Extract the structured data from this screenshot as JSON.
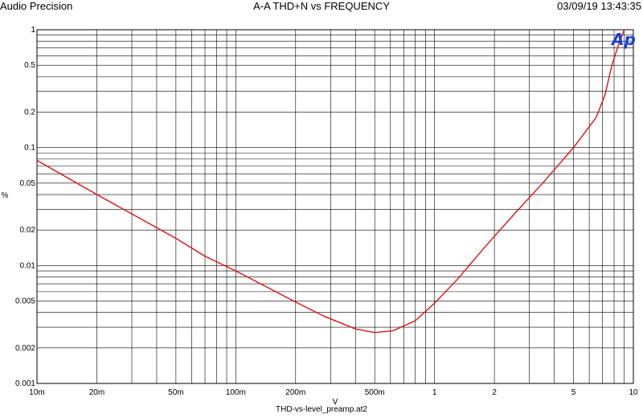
{
  "header": {
    "left": "Audio Precision",
    "title": "A-A THD+N vs FREQUENCY",
    "timestamp": "03/09/19 13:43:35"
  },
  "footer": {
    "filename": "THD-vs-level_preamp.at2"
  },
  "logo": {
    "text": "Ap",
    "color": "#1a3fd6"
  },
  "chart_data": {
    "type": "line",
    "title": "A-A THD+N vs FREQUENCY",
    "xlabel": "V",
    "ylabel": "%",
    "xscale": "log",
    "yscale": "log",
    "xlim": [
      0.01,
      10
    ],
    "ylim": [
      0.001,
      1
    ],
    "grid": true,
    "line_color": "#e01010",
    "x_tick_labels": [
      {
        "value": 0.01,
        "label": "10m"
      },
      {
        "value": 0.02,
        "label": "20m"
      },
      {
        "value": 0.05,
        "label": "50m"
      },
      {
        "value": 0.1,
        "label": "100m"
      },
      {
        "value": 0.2,
        "label": "200m"
      },
      {
        "value": 0.5,
        "label": "500m"
      },
      {
        "value": 1,
        "label": "1"
      },
      {
        "value": 2,
        "label": "2"
      },
      {
        "value": 5,
        "label": "5"
      },
      {
        "value": 10,
        "label": "10"
      }
    ],
    "y_tick_labels": [
      {
        "value": 1,
        "label": "1"
      },
      {
        "value": 0.5,
        "label": "0.5"
      },
      {
        "value": 0.2,
        "label": "0.2"
      },
      {
        "value": 0.1,
        "label": "0.1"
      },
      {
        "value": 0.05,
        "label": "0.05"
      },
      {
        "value": 0.02,
        "label": "0.02"
      },
      {
        "value": 0.01,
        "label": "0.01"
      },
      {
        "value": 0.005,
        "label": "0.005"
      },
      {
        "value": 0.002,
        "label": "0.002"
      },
      {
        "value": 0.001,
        "label": "0.001"
      }
    ],
    "series": [
      {
        "x": [
          0.01,
          0.02,
          0.05,
          0.07,
          0.1,
          0.2,
          0.28,
          0.4,
          0.5,
          0.62,
          0.8,
          1.0,
          1.3,
          1.8,
          2.5,
          3.5,
          5.0,
          6.5,
          7.2,
          7.8,
          8.5,
          9.0
        ],
        "y": [
          0.078,
          0.04,
          0.017,
          0.012,
          0.009,
          0.0049,
          0.0037,
          0.0029,
          0.0027,
          0.0028,
          0.0034,
          0.0048,
          0.0076,
          0.0145,
          0.027,
          0.05,
          0.1,
          0.18,
          0.28,
          0.5,
          0.78,
          1.0
        ]
      }
    ]
  }
}
